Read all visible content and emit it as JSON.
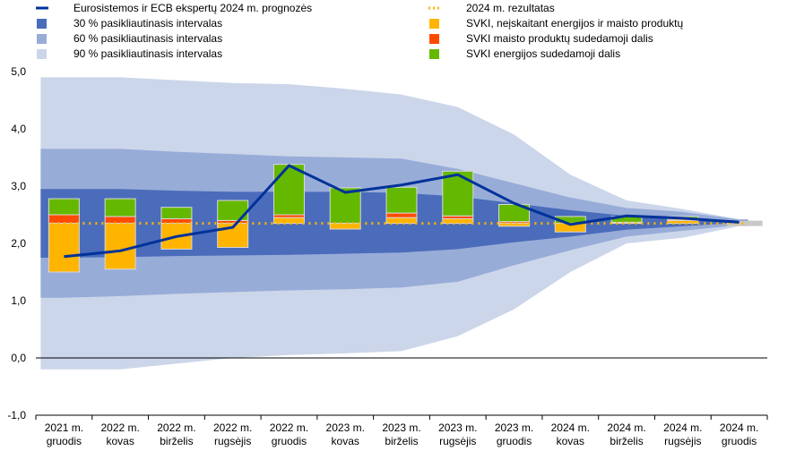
{
  "chart_data": {
    "type": "bar",
    "title": "",
    "xlabel": "",
    "ylabel": "",
    "ylim": [
      -1,
      5
    ],
    "yticks": [
      "-1,0",
      "0,0",
      "1,0",
      "2,0",
      "3,0",
      "4,0",
      "5,0"
    ],
    "grid": false,
    "legend_position": "top",
    "categories": [
      [
        "2021 m.",
        "gruodis"
      ],
      [
        "2022 m.",
        "kovas"
      ],
      [
        "2022 m.",
        "birželis"
      ],
      [
        "2022 m.",
        "rugsėjis"
      ],
      [
        "2022 m.",
        "gruodis"
      ],
      [
        "2023 m.",
        "kovas"
      ],
      [
        "2023 m.",
        "birželis"
      ],
      [
        "2023 m.",
        "rugsėjis"
      ],
      [
        "2023 m.",
        "gruodis"
      ],
      [
        "2024 m.",
        "kovas"
      ],
      [
        "2024 m.",
        "birželis"
      ],
      [
        "2024 m.",
        "rugsėjis"
      ],
      [
        "2024 m.",
        "gruodis"
      ]
    ],
    "bands": {
      "ci90": {
        "name": "90 % pasikliautinasis intervalas",
        "color": "#ccd6ea",
        "low": [
          -0.2,
          -0.2,
          -0.1,
          0.0,
          0.05,
          0.08,
          0.12,
          0.38,
          0.85,
          1.5,
          2.0,
          2.1,
          2.3
        ],
        "high": [
          4.9,
          4.9,
          4.85,
          4.8,
          4.78,
          4.7,
          4.6,
          4.38,
          3.9,
          3.2,
          2.75,
          2.6,
          2.42
        ]
      },
      "ci60": {
        "name": "60 % pasikliautinasis intervalas",
        "color": "#98acd8",
        "low": [
          1.05,
          1.08,
          1.12,
          1.15,
          1.18,
          1.2,
          1.23,
          1.33,
          1.62,
          1.88,
          2.12,
          2.22,
          2.32
        ],
        "high": [
          3.65,
          3.65,
          3.6,
          3.56,
          3.52,
          3.5,
          3.48,
          3.3,
          3.05,
          2.8,
          2.62,
          2.55,
          2.42
        ]
      },
      "ci30": {
        "name": "30 % pasikliautinasis intervalas",
        "color": "#4a6cba",
        "low": [
          1.75,
          1.76,
          1.78,
          1.79,
          1.8,
          1.82,
          1.84,
          1.9,
          2.02,
          2.12,
          2.24,
          2.3,
          2.36
        ],
        "high": [
          2.95,
          2.95,
          2.92,
          2.9,
          2.9,
          2.9,
          2.88,
          2.82,
          2.7,
          2.58,
          2.48,
          2.44,
          2.4
        ]
      }
    },
    "series": [
      {
        "name": "SVKI, neįskaitant energijos ir maisto produktų",
        "color": "#ffb400",
        "values": [
          -0.85,
          -0.8,
          -0.45,
          -0.42,
          0.1,
          -0.1,
          0.1,
          0.08,
          -0.05,
          -0.15,
          0.02,
          0.05,
          0.0
        ]
      },
      {
        "name": "SVKI maisto produktų sudedamoji dalis",
        "color": "#ff4b00",
        "values": [
          0.15,
          0.12,
          0.08,
          0.05,
          0.05,
          0.0,
          0.08,
          0.05,
          0.03,
          0.0,
          0.0,
          0.02,
          0.0
        ]
      },
      {
        "name": "SVKI energijos sudedamoji dalis",
        "color": "#65b800",
        "values": [
          0.28,
          0.31,
          0.2,
          0.35,
          0.88,
          0.62,
          0.45,
          0.78,
          0.3,
          0.12,
          0.1,
          0.05,
          0.0
        ]
      }
    ],
    "bar_baseline": 2.35,
    "lines": [
      {
        "name": "Eurosistemos ir ECB ekspertų 2024 m. prognozės",
        "color": "#003299",
        "values": [
          1.77,
          1.87,
          2.12,
          2.28,
          3.36,
          2.89,
          3.02,
          3.2,
          2.7,
          2.33,
          2.48,
          2.44,
          2.37
        ]
      },
      {
        "name": "2024 m. rezultatas",
        "color": "#ffb400",
        "style": "dotted",
        "value": 2.35
      }
    ]
  },
  "legend": [
    {
      "label": "Eurosistemos ir ECB ekspertų 2024 m. prognozės",
      "color": "#003299",
      "kind": "line"
    },
    {
      "label": "30 % pasikliautinasis intervalas",
      "color": "#4a6cba",
      "kind": "box"
    },
    {
      "label": "60 % pasikliautinasis intervalas",
      "color": "#98acd8",
      "kind": "box"
    },
    {
      "label": "90 % pasikliautinasis intervalas",
      "color": "#ccd6ea",
      "kind": "box"
    },
    {
      "label": "2024 m. rezultatas",
      "color": "#ffb400",
      "kind": "dotted"
    },
    {
      "label": "SVKI, neįskaitant energijos ir maisto produktų",
      "color": "#ffb400",
      "kind": "box"
    },
    {
      "label": "SVKI maisto produktų sudedamoji dalis",
      "color": "#ff4b00",
      "kind": "box"
    },
    {
      "label": "SVKI energijos sudedamoji dalis",
      "color": "#65b800",
      "kind": "box"
    }
  ]
}
